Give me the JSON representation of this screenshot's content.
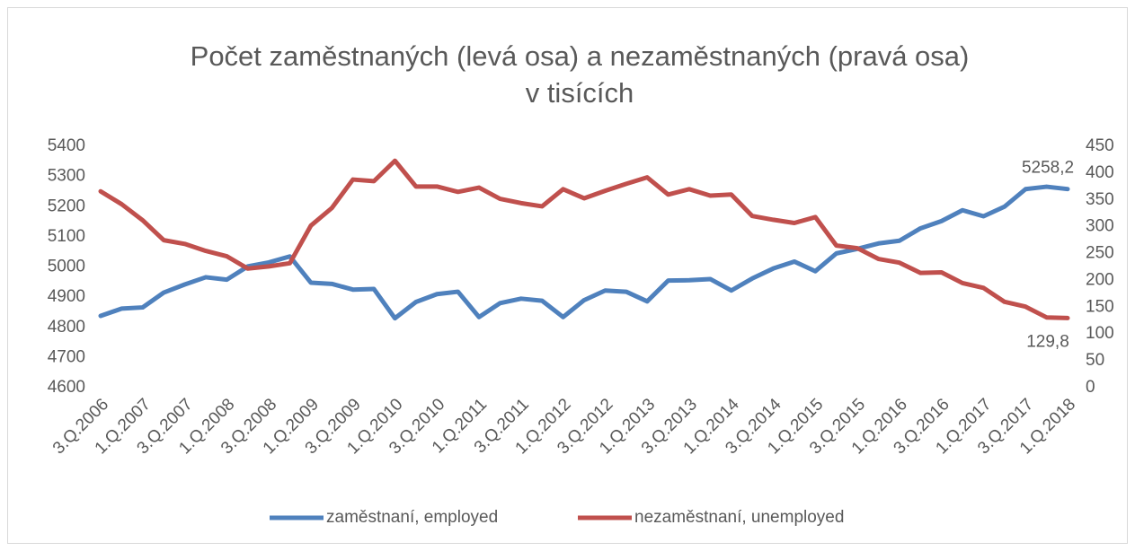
{
  "chart_data": {
    "type": "line",
    "title": "Počet zaměstnaných (levá osa) a nezaměstnaných (pravá osa)",
    "subtitle": "v tisících",
    "categories": [
      "3.Q.2006",
      null,
      "1.Q.2007",
      null,
      "3.Q.2007",
      null,
      "1.Q.2008",
      null,
      "3.Q.2008",
      null,
      "1.Q.2009",
      null,
      "3.Q.2009",
      null,
      "1.Q.2010",
      null,
      "3.Q.2010",
      null,
      "1.Q.2011",
      null,
      "3.Q.2011",
      null,
      "1.Q.2012",
      null,
      "3.Q.2012",
      null,
      "1.Q.2013",
      null,
      "3.Q.2013",
      null,
      "1.Q.2014",
      null,
      "3.Q.2014",
      null,
      "1.Q.2015",
      null,
      "3.Q.2015",
      null,
      "1.Q.2016",
      null,
      "3.Q.2016",
      null,
      "1.Q.2017",
      null,
      "3.Q.2017",
      null,
      "1.Q.2018"
    ],
    "series": [
      {
        "name": "zaměstnaní, employed",
        "color": "#4f81bd",
        "values": [
          4838,
          4862,
          4866,
          4915,
          4942,
          4966,
          4958,
          5002,
          5015,
          5035,
          4948,
          4944,
          4925,
          4927,
          4830,
          4884,
          4910,
          4918,
          4834,
          4880,
          4895,
          4888,
          4834,
          4890,
          4922,
          4918,
          4886,
          4955,
          4956,
          4960,
          4922,
          4962,
          4995,
          5018,
          4986,
          5045,
          5060,
          5078,
          5087,
          5128,
          5152,
          5188,
          5168,
          5200,
          5258,
          5266,
          5258.2
        ],
        "value_labels": [
          null,
          null,
          null,
          null,
          null,
          null,
          null,
          null,
          null,
          null,
          null,
          null,
          null,
          null,
          null,
          null,
          null,
          null,
          null,
          null,
          null,
          null,
          null,
          null,
          null,
          null,
          null,
          null,
          null,
          null,
          null,
          null,
          null,
          null,
          null,
          null,
          null,
          null,
          null,
          null,
          null,
          null,
          null,
          null,
          null,
          null,
          "5258,2"
        ]
      },
      {
        "name": "nezaměstnaní,  unemployed",
        "color": "#c0504d",
        "axis": "y2",
        "values": [
          366,
          342,
          312,
          275,
          268,
          255,
          245,
          222,
          226,
          232,
          302,
          335,
          388,
          385,
          423,
          375,
          375,
          365,
          373,
          352,
          344,
          338,
          370,
          353,
          367,
          380,
          392,
          360,
          370,
          358,
          360,
          320,
          313,
          307,
          318,
          265,
          260,
          240,
          233,
          214,
          215,
          195,
          186,
          160,
          151,
          131,
          129.8
        ],
        "value_labels": [
          null,
          null,
          null,
          null,
          null,
          null,
          null,
          null,
          null,
          null,
          null,
          null,
          null,
          null,
          null,
          null,
          null,
          null,
          null,
          null,
          null,
          null,
          null,
          null,
          null,
          null,
          null,
          null,
          null,
          null,
          null,
          null,
          null,
          null,
          null,
          null,
          null,
          null,
          null,
          null,
          null,
          null,
          null,
          null,
          null,
          null,
          "129,8"
        ]
      }
    ],
    "ylim": [
      4600,
      5400
    ],
    "yticks": [
      4600,
      4700,
      4800,
      4900,
      5000,
      5100,
      5200,
      5300,
      5400
    ],
    "y2lim": [
      0,
      450
    ],
    "y2ticks": [
      0,
      50,
      100,
      150,
      200,
      250,
      300,
      350,
      400,
      450
    ],
    "grid": false,
    "legend": "bottom"
  }
}
